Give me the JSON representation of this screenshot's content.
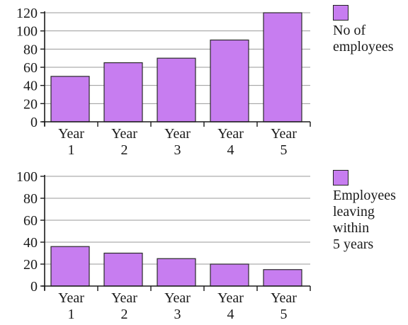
{
  "colors": {
    "bar": "#c77df0",
    "bar_stroke": "#2a2a2a",
    "axis": "#1a1a1a",
    "grid": "#9a9a9a"
  },
  "chart_data": [
    {
      "type": "bar",
      "categories": [
        "Year\n1",
        "Year\n2",
        "Year\n3",
        "Year\n4",
        "Year\n5"
      ],
      "series": [
        {
          "name": "No of\nemployees",
          "values": [
            50,
            65,
            70,
            90,
            120
          ]
        }
      ],
      "ylim": [
        0,
        120
      ],
      "yticks": [
        0,
        20,
        40,
        60,
        80,
        100,
        120
      ],
      "grid": true,
      "legend": "right",
      "title": "",
      "xlabel": "",
      "ylabel": ""
    },
    {
      "type": "bar",
      "categories": [
        "Year\n1",
        "Year\n2",
        "Year\n3",
        "Year\n4",
        "Year\n5"
      ],
      "series": [
        {
          "name": "Employees\nleaving\nwithin\n5 years",
          "values": [
            36,
            30,
            25,
            20,
            15
          ]
        }
      ],
      "ylim": [
        0,
        100
      ],
      "yticks": [
        0,
        20,
        40,
        60,
        80,
        100
      ],
      "grid": true,
      "legend": "right",
      "title": "",
      "xlabel": "",
      "ylabel": ""
    }
  ]
}
